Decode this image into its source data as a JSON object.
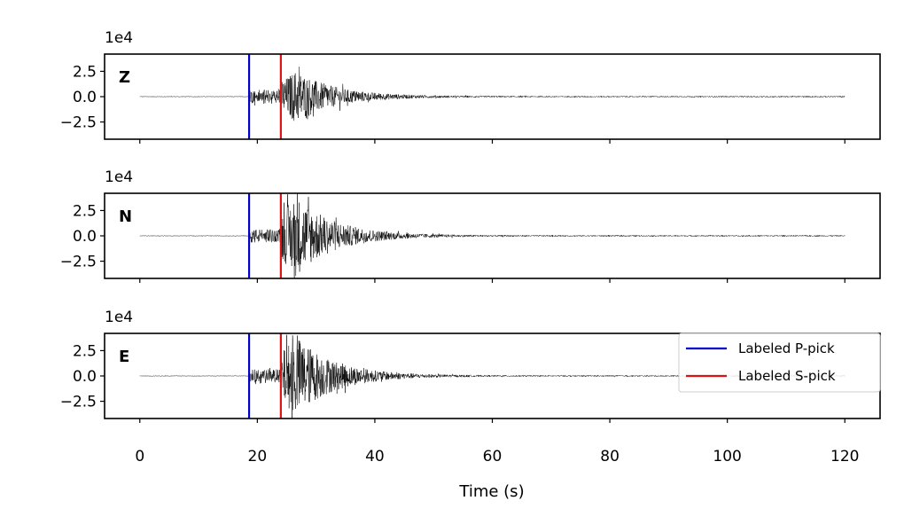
{
  "chart_data": {
    "type": "line",
    "title": "",
    "xlabel": "Time (s)",
    "xlim": [
      -6,
      126
    ],
    "x_ticks": [
      0,
      20,
      40,
      60,
      80,
      100,
      120
    ],
    "x_tick_labels": [
      "0",
      "20",
      "40",
      "60",
      "80",
      "100",
      "120"
    ],
    "ylim": [
      -4.2,
      4.2
    ],
    "y_ticks": [
      2.5,
      0.0,
      -2.5
    ],
    "y_tick_labels": [
      "2.5",
      "0.0",
      "−2.5"
    ],
    "y_scale_label": "1e4",
    "waveform_extent_s": [
      0,
      120
    ],
    "picks": [
      {
        "name": "Labeled P-pick",
        "time": 18.6,
        "color": "#0000cc"
      },
      {
        "name": "Labeled S-pick",
        "time": 24.0,
        "color": "#dd1111"
      }
    ],
    "panels": [
      {
        "channel": "Z",
        "peak_amplitude": 2.6
      },
      {
        "channel": "N",
        "peak_amplitude": 4.0
      },
      {
        "channel": "E",
        "peak_amplitude": 4.0
      }
    ],
    "legend": {
      "placement": "right",
      "entries": [
        {
          "label": "Labeled P-pick",
          "color": "#0000cc"
        },
        {
          "label": "Labeled S-pick",
          "color": "#dd1111"
        }
      ]
    },
    "trace_color": "#000000",
    "grid": false
  }
}
